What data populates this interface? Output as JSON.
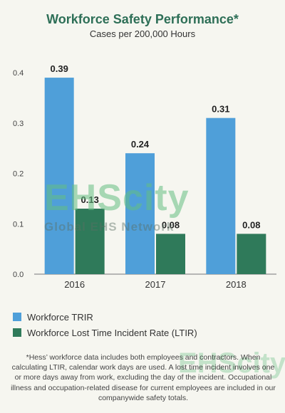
{
  "chart_data": {
    "type": "bar",
    "title": "Workforce Safety Performance*",
    "subtitle": "Cases per 200,000 Hours",
    "categories": [
      "2016",
      "2017",
      "2018"
    ],
    "series": [
      {
        "name": "Workforce TRIR",
        "values": [
          0.39,
          0.24,
          0.31
        ],
        "labels": [
          "0.39",
          "0.24",
          "0.31"
        ],
        "color": "#4f9fd9"
      },
      {
        "name": "Workforce Lost Time Incident Rate (LTIR)",
        "values": [
          0.13,
          0.08,
          0.08
        ],
        "labels": [
          "0.13",
          "0.08",
          "0.08"
        ],
        "color": "#2f7a5a"
      }
    ],
    "ylim": [
      0,
      0.4
    ],
    "yticks": [
      0.0,
      0.1,
      0.2,
      0.3,
      0.4
    ],
    "ytick_labels": [
      "0.0",
      "0.1",
      "0.2",
      "0.3",
      "0.4"
    ],
    "xlabel": "",
    "ylabel": "",
    "grid": false,
    "legend_position": "bottom-left"
  },
  "footnote": "*Hess’ workforce data includes both employees and contractors. When calculating LTIR, calendar work days are used. A lost time incident involves one or more days away from work, excluding the day of the incident. Occupational illness and occupation-related disease for current employees are included in our companywide safety totals.",
  "watermark": {
    "logo": "EHScity",
    "text": "Global EHS Network"
  },
  "colors": {
    "title": "#2e6f57",
    "axis": "#777777"
  }
}
